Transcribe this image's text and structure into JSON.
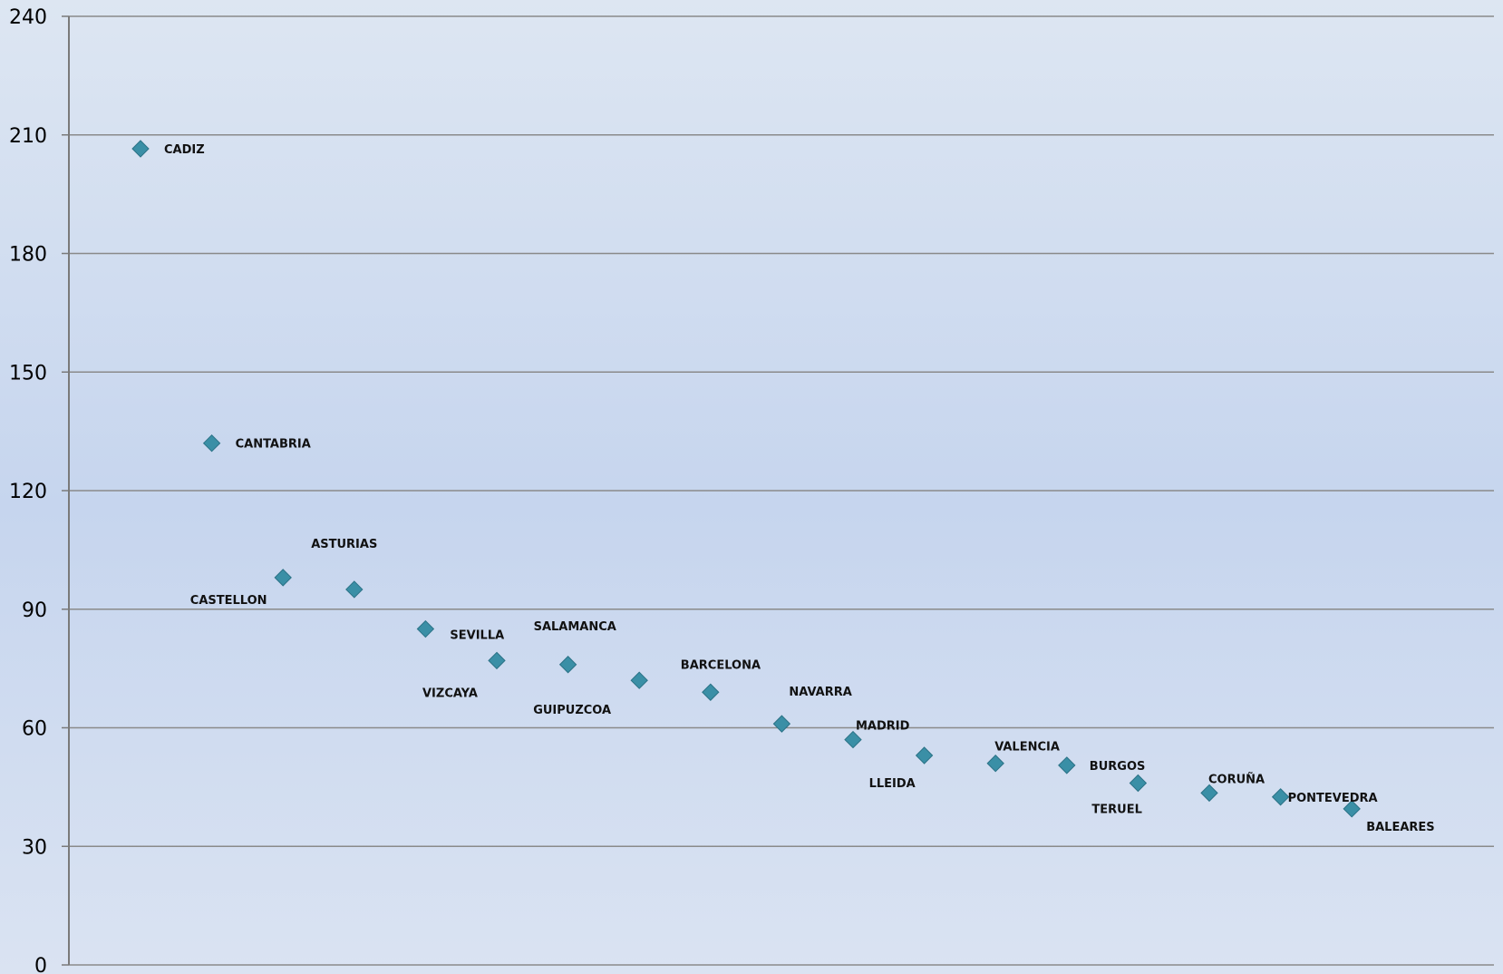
{
  "chart_data": {
    "type": "scatter",
    "title": "",
    "xlabel": "",
    "ylabel": "",
    "ylim": [
      0,
      240
    ],
    "yticks": [
      0,
      30,
      60,
      90,
      120,
      150,
      180,
      210,
      240
    ],
    "grid": true,
    "legend": "none",
    "colors": {
      "marker": "#3a8fa6",
      "marker_stroke": "#2b7286",
      "gridline": "#8a8a8a",
      "axis": "#7a7a7a"
    },
    "marker_shape": "diamond",
    "points": [
      {
        "x": 1,
        "y": 206.5,
        "label": "CADIZ"
      },
      {
        "x": 2,
        "y": 132,
        "label": "CANTABRIA"
      },
      {
        "x": 3,
        "y": 98,
        "label": "ASTURIAS"
      },
      {
        "x": 4,
        "y": 95,
        "label": "CASTELLON"
      },
      {
        "x": 5,
        "y": 85,
        "label": "SEVILLA"
      },
      {
        "x": 6,
        "y": 77,
        "label": "VIZCAYA"
      },
      {
        "x": 7,
        "y": 76,
        "label": "SALAMANCA"
      },
      {
        "x": 8,
        "y": 72,
        "label": "GUIPUZCOA"
      },
      {
        "x": 9,
        "y": 69,
        "label": "BARCELONA"
      },
      {
        "x": 10,
        "y": 61,
        "label": "NAVARRA"
      },
      {
        "x": 11,
        "y": 57,
        "label": "MADRID"
      },
      {
        "x": 12,
        "y": 53,
        "label": "LLEIDA"
      },
      {
        "x": 13,
        "y": 51,
        "label": "VALENCIA"
      },
      {
        "x": 14,
        "y": 50.5,
        "label": "BURGOS"
      },
      {
        "x": 15,
        "y": 46,
        "label": "TERUEL"
      },
      {
        "x": 16,
        "y": 43.5,
        "label": "CORUÑA"
      },
      {
        "x": 17,
        "y": 42.5,
        "label": "PONTEVEDRA"
      },
      {
        "x": 18,
        "y": 39.5,
        "label": "BALEARES"
      }
    ]
  }
}
